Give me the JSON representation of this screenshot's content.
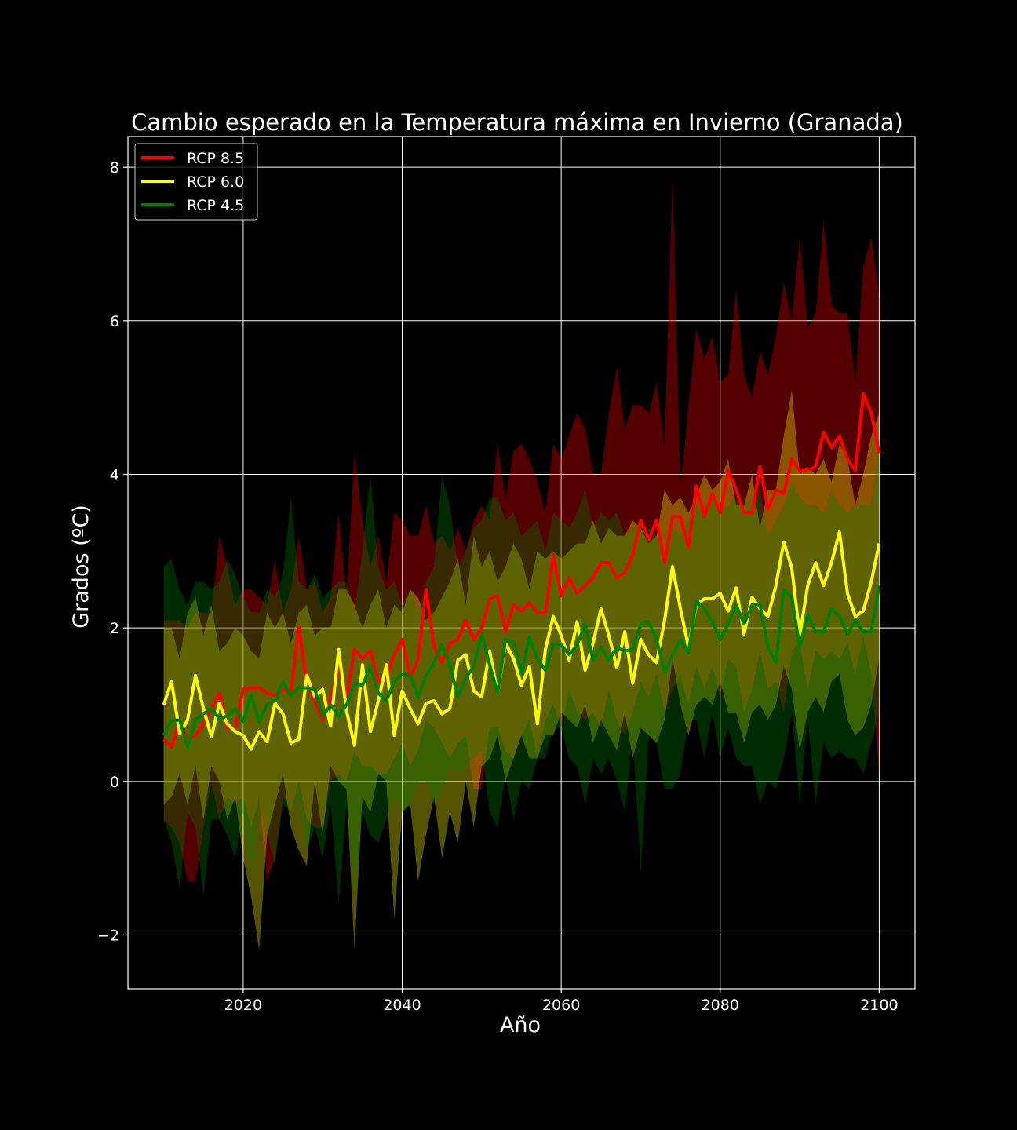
{
  "chart_data": {
    "type": "line",
    "title": "Cambio esperado en la Temperatura máxima en Invierno (Granada)",
    "xlabel": "Año",
    "ylabel": "Grados (ºC)",
    "xlim": [
      2005.5,
      2104.5
    ],
    "ylim": [
      -2.7,
      8.4
    ],
    "xticks": [
      2020,
      2040,
      2060,
      2080,
      2100
    ],
    "yticks": [
      -2,
      0,
      2,
      4,
      6,
      8
    ],
    "grid": true,
    "background": "#000000",
    "legend": {
      "placement": "top-left",
      "entries": [
        "RCP 8.5",
        "RCP 6.0",
        "RCP 4.5"
      ]
    },
    "x": [
      2010,
      2011,
      2012,
      2013,
      2014,
      2015,
      2016,
      2017,
      2018,
      2019,
      2020,
      2021,
      2022,
      2023,
      2024,
      2025,
      2026,
      2027,
      2028,
      2029,
      2030,
      2031,
      2032,
      2033,
      2034,
      2035,
      2036,
      2037,
      2038,
      2039,
      2040,
      2041,
      2042,
      2043,
      2044,
      2045,
      2046,
      2047,
      2048,
      2049,
      2050,
      2051,
      2052,
      2053,
      2054,
      2055,
      2056,
      2057,
      2058,
      2059,
      2060,
      2061,
      2062,
      2063,
      2064,
      2065,
      2066,
      2067,
      2068,
      2069,
      2070,
      2071,
      2072,
      2073,
      2074,
      2075,
      2076,
      2077,
      2078,
      2079,
      2080,
      2081,
      2082,
      2083,
      2084,
      2085,
      2086,
      2087,
      2088,
      2089,
      2090,
      2091,
      2092,
      2093,
      2094,
      2095,
      2096,
      2097,
      2098,
      2099,
      2100
    ],
    "series": [
      {
        "name": "RCP 8.5",
        "color": "#ff0000",
        "band_color": "#550000",
        "mean": [
          0.55,
          0.45,
          0.8,
          0.55,
          0.6,
          0.75,
          0.95,
          1.15,
          0.7,
          0.7,
          1.2,
          1.22,
          1.22,
          1.15,
          1.12,
          1.2,
          1.15,
          2.02,
          1.25,
          1.05,
          0.8,
          1.1,
          1.5,
          1.1,
          1.72,
          1.6,
          1.7,
          1.3,
          1.35,
          1.65,
          1.85,
          1.35,
          1.6,
          2.5,
          1.75,
          1.55,
          1.8,
          1.85,
          2.1,
          1.85,
          2.0,
          2.38,
          2.42,
          1.95,
          2.3,
          2.22,
          2.32,
          2.2,
          2.2,
          2.95,
          2.42,
          2.65,
          2.45,
          2.55,
          2.65,
          2.85,
          2.85,
          2.65,
          2.72,
          2.95,
          3.4,
          3.15,
          3.4,
          2.85,
          3.45,
          3.45,
          3.05,
          3.85,
          3.45,
          3.75,
          3.5,
          4.05,
          3.8,
          3.5,
          3.5,
          4.1,
          3.55,
          3.8,
          3.75,
          4.2,
          4.05,
          4.05,
          4.1,
          4.55,
          4.35,
          4.5,
          4.2,
          4.05,
          5.05,
          4.8,
          4.28
        ],
        "upper": [
          2.1,
          2.1,
          2.1,
          2.0,
          2.2,
          2.2,
          2.2,
          3.2,
          2.8,
          2.3,
          2.5,
          2.5,
          2.4,
          2.3,
          2.9,
          2.2,
          2.5,
          3.2,
          2.5,
          2.6,
          2.2,
          2.4,
          3.5,
          2.4,
          4.3,
          3.4,
          2.8,
          3.2,
          2.6,
          3.5,
          3.4,
          3.2,
          3.2,
          3.6,
          3.1,
          3.2,
          3.0,
          3.3,
          3.0,
          3.4,
          3.6,
          3.4,
          4.4,
          3.7,
          4.3,
          4.4,
          4.2,
          3.9,
          3.5,
          4.4,
          4.2,
          4.5,
          4.8,
          4.6,
          4.0,
          4.0,
          4.8,
          5.4,
          4.6,
          4.9,
          4.9,
          4.8,
          5.2,
          4.4,
          7.9,
          3.8,
          4.9,
          5.9,
          5.5,
          5.8,
          5.2,
          5.3,
          6.4,
          5.3,
          5.0,
          5.6,
          5.3,
          5.8,
          6.5,
          6.0,
          7.1,
          5.9,
          6.1,
          7.3,
          6.2,
          6.1,
          6.1,
          5.2,
          6.7,
          7.1,
          6.3
        ],
        "lower": [
          -0.5,
          -0.6,
          -0.8,
          -1.3,
          -1.3,
          -0.6,
          0.0,
          -0.5,
          -0.2,
          -0.3,
          -0.2,
          -0.6,
          -0.2,
          -1.3,
          -1.0,
          -0.2,
          -0.4,
          0.0,
          -0.5,
          -0.6,
          -0.6,
          0.0,
          0.1,
          0.0,
          0.4,
          0.2,
          0.2,
          0.1,
          0.1,
          0.3,
          0.5,
          0.2,
          0.4,
          0.8,
          0.7,
          0.5,
          0.3,
          0.5,
          0.6,
          -0.1,
          -0.1,
          0.7,
          0.7,
          0.4,
          0.3,
          0.6,
          0.8,
          0.3,
          0.8,
          1.0,
          0.7,
          1.2,
          0.9,
          0.8,
          0.9,
          0.7,
          1.2,
          0.8,
          0.6,
          0.9,
          1.3,
          1.1,
          1.4,
          0.9,
          1.2,
          1.4,
          1.0,
          1.5,
          1.2,
          1.5,
          1.1,
          1.6,
          1.5,
          0.9,
          1.2,
          1.7,
          1.2,
          1.3,
          0.9,
          1.7,
          1.8,
          1.2,
          1.7,
          1.6,
          1.7,
          1.6,
          1.8,
          1.4,
          1.9,
          1.4,
          0.1
        ]
      },
      {
        "name": "RCP 6.0",
        "color": "#ffff00",
        "band_color": "#8a4a00",
        "mean": [
          1.0,
          1.3,
          0.62,
          0.8,
          1.38,
          0.95,
          0.58,
          1.02,
          0.75,
          0.65,
          0.6,
          0.42,
          0.65,
          0.52,
          1.02,
          0.88,
          0.5,
          0.55,
          1.38,
          1.1,
          1.2,
          0.72,
          1.72,
          0.92,
          0.47,
          1.52,
          0.65,
          1.05,
          1.52,
          0.6,
          1.18,
          0.95,
          0.75,
          1.02,
          1.05,
          0.88,
          0.95,
          1.58,
          1.65,
          1.18,
          1.1,
          1.7,
          1.15,
          1.8,
          1.6,
          1.25,
          1.5,
          0.75,
          1.72,
          2.15,
          1.9,
          1.58,
          2.08,
          1.45,
          1.8,
          2.25,
          1.9,
          1.48,
          1.95,
          1.28,
          1.85,
          1.65,
          1.55,
          2.1,
          2.8,
          2.25,
          1.75,
          2.3,
          2.38,
          2.38,
          2.45,
          2.22,
          2.52,
          1.92,
          2.4,
          2.25,
          2.15,
          2.55,
          3.12,
          2.78,
          1.9,
          2.55,
          2.85,
          2.55,
          2.85,
          3.25,
          2.45,
          2.15,
          2.22,
          2.6,
          3.1
        ],
        "upper": [
          2.0,
          2.0,
          1.6,
          2.2,
          2.4,
          1.9,
          2.3,
          1.7,
          1.8,
          2.0,
          1.9,
          1.7,
          1.6,
          2.2,
          2.0,
          2.2,
          1.8,
          2.2,
          2.3,
          1.9,
          2.0,
          2.0,
          2.5,
          2.5,
          2.3,
          2.0,
          2.3,
          2.5,
          2.0,
          2.3,
          2.2,
          2.5,
          2.4,
          2.1,
          2.2,
          2.4,
          2.6,
          2.9,
          2.3,
          3.2,
          2.8,
          3.0,
          2.6,
          2.8,
          3.1,
          2.9,
          2.5,
          3.0,
          2.9,
          3.0,
          2.9,
          3.0,
          3.1,
          3.1,
          3.4,
          3.1,
          3.3,
          3.2,
          3.2,
          3.4,
          3.3,
          3.1,
          3.2,
          3.8,
          3.6,
          3.7,
          3.5,
          3.7,
          4.0,
          3.8,
          3.9,
          4.2,
          3.6,
          3.6,
          4.0,
          3.3,
          3.8,
          3.8,
          4.5,
          5.1,
          4.0,
          4.1,
          4.0,
          4.2,
          3.9,
          4.4,
          4.2,
          3.6,
          4.0,
          4.5,
          4.8
        ],
        "lower": [
          -0.3,
          -0.2,
          0.1,
          -0.3,
          0.2,
          -0.5,
          0.2,
          0.0,
          -0.5,
          -0.2,
          -1.0,
          -1.5,
          -2.2,
          -0.7,
          -0.3,
          0.1,
          -0.6,
          -0.9,
          -1.1,
          0.0,
          -0.7,
          0.2,
          0.0,
          -0.1,
          -2.2,
          -0.2,
          -0.4,
          0.1,
          0.0,
          -1.8,
          -0.4,
          -0.3,
          -1.3,
          -0.7,
          -0.2,
          -1.0,
          -0.4,
          -0.8,
          0.0,
          -0.6,
          0.2,
          0.3,
          0.6,
          0.0,
          0.3,
          0.6,
          0.3,
          0.3,
          0.6,
          0.6,
          0.9,
          0.8,
          0.7,
          1.0,
          0.5,
          0.8,
          0.6,
          0.4,
          0.9,
          0.3,
          0.7,
          0.6,
          0.5,
          0.8,
          1.6,
          1.0,
          0.6,
          1.0,
          1.1,
          1.0,
          1.3,
          0.9,
          0.9,
          0.5,
          0.9,
          1.0,
          0.8,
          1.0,
          1.5,
          1.2,
          0.4,
          0.9,
          1.1,
          0.9,
          1.3,
          1.4,
          0.8,
          0.6,
          0.7,
          1.0,
          1.6
        ]
      },
      {
        "name": "RCP 4.5",
        "color": "#008000",
        "band_color": "#003000",
        "mean": [
          0.6,
          0.8,
          0.8,
          0.45,
          0.8,
          0.88,
          0.95,
          0.82,
          0.85,
          0.95,
          0.78,
          1.12,
          0.78,
          1.0,
          1.05,
          1.3,
          1.12,
          1.22,
          1.22,
          1.2,
          0.85,
          1.0,
          0.85,
          1.0,
          1.28,
          1.25,
          1.5,
          1.15,
          1.05,
          1.3,
          1.4,
          1.38,
          1.1,
          1.38,
          1.55,
          1.78,
          1.52,
          1.1,
          1.35,
          1.5,
          1.92,
          1.52,
          1.15,
          1.85,
          1.82,
          1.4,
          1.88,
          1.6,
          1.45,
          1.78,
          1.78,
          1.65,
          1.78,
          2.05,
          1.58,
          1.75,
          1.58,
          1.75,
          1.7,
          1.72,
          2.05,
          2.08,
          1.85,
          1.42,
          1.65,
          1.85,
          1.68,
          2.35,
          2.25,
          2.08,
          1.85,
          2.05,
          2.3,
          2.05,
          2.3,
          2.3,
          1.75,
          1.55,
          2.5,
          2.4,
          1.75,
          2.18,
          1.95,
          1.95,
          2.25,
          2.15,
          1.92,
          2.1,
          1.95,
          1.95,
          2.55
        ],
        "upper": [
          2.8,
          2.9,
          2.5,
          2.3,
          2.6,
          2.6,
          2.5,
          2.6,
          2.9,
          2.7,
          2.4,
          2.2,
          2.2,
          2.5,
          2.4,
          2.7,
          3.7,
          2.6,
          2.5,
          2.7,
          2.4,
          2.5,
          2.6,
          2.6,
          2.2,
          3.0,
          4.0,
          2.8,
          2.5,
          2.6,
          2.3,
          2.5,
          2.2,
          2.6,
          2.8,
          4.0,
          3.6,
          2.8,
          3.0,
          3.3,
          3.4,
          3.7,
          3.7,
          3.4,
          3.5,
          3.2,
          3.3,
          3.4,
          3.0,
          3.5,
          3.4,
          3.3,
          3.5,
          3.8,
          3.3,
          3.5,
          3.4,
          3.5,
          3.2,
          3.3,
          3.4,
          3.3,
          3.2,
          3.0,
          3.3,
          3.2,
          3.4,
          3.6,
          3.5,
          3.7,
          3.5,
          3.6,
          3.7,
          3.6,
          3.7,
          3.8,
          3.2,
          3.4,
          3.6,
          3.9,
          3.7,
          3.6,
          3.6,
          3.5,
          3.8,
          3.6,
          3.5,
          3.6,
          3.6,
          3.6,
          4.4
        ],
        "lower": [
          -0.5,
          -0.8,
          -1.4,
          -0.4,
          -0.6,
          -1.5,
          -0.5,
          -0.5,
          -0.7,
          -1.0,
          -0.4,
          -1.3,
          -0.2,
          -0.7,
          -1.1,
          -0.3,
          -0.4,
          -0.2,
          -0.9,
          -0.6,
          -1.0,
          -0.3,
          -1.6,
          -0.3,
          -1.5,
          -0.4,
          -0.7,
          -0.8,
          -0.5,
          -0.2,
          -0.4,
          -0.3,
          0.0,
          0.0,
          -0.3,
          -0.1,
          0.2,
          0.1,
          0.2,
          0.3,
          0.4,
          -0.4,
          -0.6,
          0.1,
          -0.5,
          0.0,
          -0.1,
          0.3,
          0.3,
          0.7,
          0.7,
          0.3,
          0.2,
          -0.3,
          0.3,
          0.1,
          0.3,
          0.0,
          -0.4,
          0.6,
          -1.2,
          0.6,
          0.5,
          -0.1,
          -0.1,
          0.1,
          0.8,
          0.8,
          0.3,
          0.9,
          0.3,
          0.7,
          0.3,
          0.2,
          0.2,
          -0.3,
          0.0,
          -0.1,
          0.3,
          0.9,
          -0.3,
          0.8,
          -0.3,
          0.5,
          0.3,
          0.4,
          0.3,
          0.3,
          0.1,
          0.5,
          0.9
        ]
      }
    ]
  }
}
